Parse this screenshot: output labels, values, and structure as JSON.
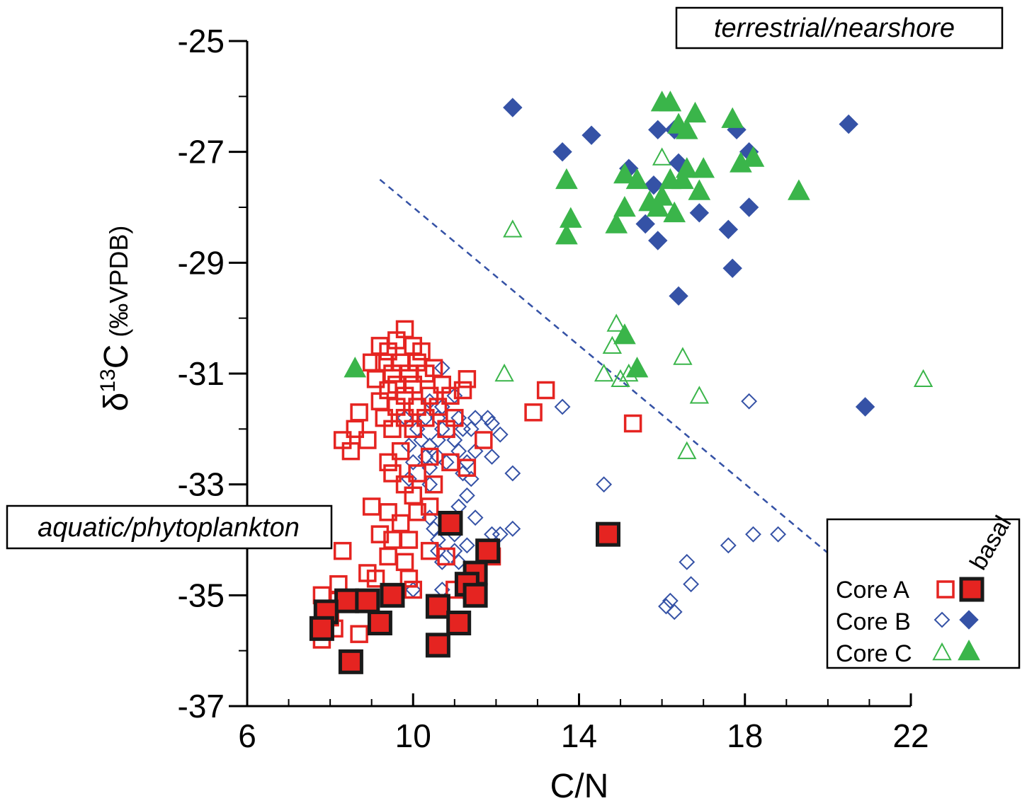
{
  "chart_data": {
    "type": "scatter",
    "xlabel": "C/N",
    "ylabel_delta": "δ",
    "ylabel_sup": "13",
    "ylabel_main": "C",
    "ylabel_units": "(‰VPDB)",
    "xlim": [
      6,
      22
    ],
    "ylim": [
      -37,
      -25
    ],
    "x_ticks": [
      6,
      10,
      14,
      18,
      22
    ],
    "x_tick_labels": [
      "6",
      "10",
      "14",
      "18",
      "22"
    ],
    "y_ticks": [
      -25,
      -27,
      -29,
      -31,
      -33,
      -35,
      -37
    ],
    "y_tick_labels": [
      "-25",
      "-27",
      "-29",
      "-31",
      "-33",
      "-35",
      "-37"
    ],
    "annotations": {
      "terrestrial": "terrestrial/nearshore",
      "aquatic": "aquatic/phytoplankton"
    },
    "divider_line": {
      "from": [
        9.2,
        -27.5
      ],
      "to": [
        20.1,
        -34.3
      ]
    },
    "legend": {
      "header": "basal",
      "entries": [
        "Core A",
        "Core B",
        "Core C"
      ]
    },
    "colors": {
      "core_a": "#e52421",
      "core_b": "#3552a6",
      "core_c": "#3ab54a",
      "basal_edge": "#1a1a1a"
    },
    "series": [
      {
        "name": "Core A",
        "marker": "square-open",
        "points": [
          [
            9.8,
            -30.2
          ],
          [
            9.6,
            -30.4
          ],
          [
            10.0,
            -30.5
          ],
          [
            9.2,
            -30.5
          ],
          [
            9.4,
            -30.6
          ],
          [
            10.2,
            -30.6
          ],
          [
            9.0,
            -30.8
          ],
          [
            9.3,
            -30.8
          ],
          [
            9.7,
            -30.8
          ],
          [
            10.1,
            -30.8
          ],
          [
            10.5,
            -30.9
          ],
          [
            9.5,
            -31.0
          ],
          [
            9.9,
            -31.0
          ],
          [
            10.3,
            -31.0
          ],
          [
            9.1,
            -31.1
          ],
          [
            9.6,
            -31.2
          ],
          [
            10.0,
            -31.2
          ],
          [
            10.7,
            -31.2
          ],
          [
            11.3,
            -31.1
          ],
          [
            9.4,
            -31.3
          ],
          [
            9.8,
            -31.4
          ],
          [
            10.4,
            -31.4
          ],
          [
            10.9,
            -31.4
          ],
          [
            11.2,
            -31.3
          ],
          [
            9.2,
            -31.5
          ],
          [
            9.6,
            -31.6
          ],
          [
            10.1,
            -31.6
          ],
          [
            10.6,
            -31.6
          ],
          [
            13.2,
            -31.3
          ],
          [
            8.7,
            -31.7
          ],
          [
            9.3,
            -31.8
          ],
          [
            9.8,
            -31.8
          ],
          [
            10.3,
            -31.8
          ],
          [
            11.0,
            -31.8
          ],
          [
            12.9,
            -31.7
          ],
          [
            8.6,
            -32.0
          ],
          [
            9.5,
            -32.0
          ],
          [
            10.0,
            -32.0
          ],
          [
            10.8,
            -32.0
          ],
          [
            8.3,
            -32.2
          ],
          [
            8.9,
            -32.2
          ],
          [
            11.7,
            -32.2
          ],
          [
            8.5,
            -32.4
          ],
          [
            9.7,
            -32.4
          ],
          [
            10.4,
            -32.5
          ],
          [
            9.4,
            -32.6
          ],
          [
            10.9,
            -32.6
          ],
          [
            9.5,
            -32.8
          ],
          [
            10.1,
            -32.8
          ],
          [
            11.3,
            -32.7
          ],
          [
            9.8,
            -33.0
          ],
          [
            10.5,
            -33.0
          ],
          [
            10.0,
            -33.2
          ],
          [
            10.4,
            -33.4
          ],
          [
            9.0,
            -33.4
          ],
          [
            9.4,
            -33.5
          ],
          [
            10.1,
            -33.5
          ],
          [
            9.7,
            -33.7
          ],
          [
            9.2,
            -33.9
          ],
          [
            9.5,
            -34.0
          ],
          [
            9.9,
            -34.0
          ],
          [
            9.4,
            -34.3
          ],
          [
            8.3,
            -34.2
          ],
          [
            9.8,
            -34.4
          ],
          [
            10.4,
            -34.2
          ],
          [
            10.8,
            -34.3
          ],
          [
            11.9,
            -34.3
          ],
          [
            8.9,
            -34.6
          ],
          [
            9.1,
            -34.7
          ],
          [
            9.9,
            -34.7
          ],
          [
            8.2,
            -34.8
          ],
          [
            10.0,
            -34.9
          ],
          [
            7.8,
            -35.0
          ],
          [
            8.2,
            -35.1
          ],
          [
            8.0,
            -35.4
          ],
          [
            8.1,
            -35.6
          ],
          [
            8.7,
            -35.7
          ],
          [
            7.8,
            -35.8
          ],
          [
            11.0,
            -34.9
          ],
          [
            15.3,
            -31.9
          ]
        ]
      },
      {
        "name": "Core A basal",
        "marker": "square-filled",
        "points": [
          [
            10.9,
            -33.7
          ],
          [
            14.7,
            -33.9
          ],
          [
            11.8,
            -34.2
          ],
          [
            11.5,
            -34.6
          ],
          [
            11.3,
            -34.8
          ],
          [
            11.5,
            -35.0
          ],
          [
            8.4,
            -35.1
          ],
          [
            8.9,
            -35.1
          ],
          [
            9.5,
            -35.0
          ],
          [
            7.9,
            -35.3
          ],
          [
            10.6,
            -35.2
          ],
          [
            9.2,
            -35.5
          ],
          [
            11.1,
            -35.5
          ],
          [
            7.8,
            -35.6
          ],
          [
            10.6,
            -35.9
          ],
          [
            8.5,
            -36.2
          ]
        ]
      },
      {
        "name": "Core B",
        "marker": "diamond-open",
        "points": [
          [
            10.7,
            -30.9
          ],
          [
            11.0,
            -31.4
          ],
          [
            10.4,
            -31.5
          ],
          [
            10.7,
            -31.6
          ],
          [
            13.6,
            -31.6
          ],
          [
            18.1,
            -31.5
          ],
          [
            9.8,
            -31.8
          ],
          [
            10.3,
            -31.8
          ],
          [
            10.6,
            -31.8
          ],
          [
            11.1,
            -31.8
          ],
          [
            11.5,
            -31.8
          ],
          [
            11.8,
            -31.8
          ],
          [
            11.9,
            -31.9
          ],
          [
            10.1,
            -32.0
          ],
          [
            10.7,
            -32.0
          ],
          [
            11.2,
            -32.0
          ],
          [
            11.4,
            -32.0
          ],
          [
            10.2,
            -32.2
          ],
          [
            10.6,
            -32.2
          ],
          [
            11.0,
            -32.2
          ],
          [
            12.1,
            -32.1
          ],
          [
            9.9,
            -32.3
          ],
          [
            10.4,
            -32.3
          ],
          [
            11.1,
            -32.4
          ],
          [
            11.5,
            -32.4
          ],
          [
            10.3,
            -32.5
          ],
          [
            10.6,
            -32.5
          ],
          [
            11.9,
            -32.5
          ],
          [
            10.0,
            -32.6
          ],
          [
            10.8,
            -32.6
          ],
          [
            11.3,
            -32.6
          ],
          [
            10.4,
            -32.7
          ],
          [
            11.2,
            -32.8
          ],
          [
            12.4,
            -32.8
          ],
          [
            9.9,
            -32.9
          ],
          [
            11.4,
            -32.9
          ],
          [
            10.4,
            -33.0
          ],
          [
            14.6,
            -33.0
          ],
          [
            11.3,
            -33.2
          ],
          [
            11.1,
            -33.4
          ],
          [
            10.4,
            -33.6
          ],
          [
            11.5,
            -33.6
          ],
          [
            10.5,
            -33.8
          ],
          [
            11.0,
            -33.9
          ],
          [
            11.9,
            -33.9
          ],
          [
            12.1,
            -33.9
          ],
          [
            12.4,
            -33.8
          ],
          [
            10.6,
            -34.0
          ],
          [
            18.2,
            -33.9
          ],
          [
            18.8,
            -33.9
          ],
          [
            10.6,
            -34.2
          ],
          [
            11.0,
            -34.2
          ],
          [
            11.3,
            -34.1
          ],
          [
            17.6,
            -34.1
          ],
          [
            10.7,
            -34.4
          ],
          [
            11.1,
            -34.4
          ],
          [
            16.6,
            -34.4
          ],
          [
            10.0,
            -34.9
          ],
          [
            10.7,
            -34.9
          ],
          [
            11.3,
            -35.0
          ],
          [
            16.7,
            -34.8
          ],
          [
            16.2,
            -35.1
          ],
          [
            16.1,
            -35.2
          ],
          [
            16.3,
            -35.3
          ]
        ]
      },
      {
        "name": "Core B basal",
        "marker": "diamond-filled",
        "points": [
          [
            12.4,
            -26.2
          ],
          [
            20.5,
            -26.5
          ],
          [
            17.8,
            -26.6
          ],
          [
            15.9,
            -26.6
          ],
          [
            16.3,
            -26.6
          ],
          [
            14.3,
            -26.7
          ],
          [
            13.6,
            -27.0
          ],
          [
            18.1,
            -27.0
          ],
          [
            16.4,
            -27.2
          ],
          [
            15.2,
            -27.3
          ],
          [
            15.8,
            -27.6
          ],
          [
            16.9,
            -28.1
          ],
          [
            18.1,
            -28.0
          ],
          [
            15.6,
            -28.3
          ],
          [
            17.6,
            -28.4
          ],
          [
            15.9,
            -28.6
          ],
          [
            17.7,
            -29.1
          ],
          [
            16.4,
            -29.6
          ],
          [
            20.9,
            -31.6
          ]
        ]
      },
      {
        "name": "Core C",
        "marker": "triangle-open",
        "points": [
          [
            16.0,
            -27.1
          ],
          [
            12.4,
            -28.4
          ],
          [
            14.9,
            -30.1
          ],
          [
            14.8,
            -30.5
          ],
          [
            16.5,
            -30.7
          ],
          [
            15.2,
            -31.0
          ],
          [
            14.6,
            -31.0
          ],
          [
            12.2,
            -31.0
          ],
          [
            15.0,
            -31.1
          ],
          [
            22.3,
            -31.1
          ],
          [
            16.9,
            -31.4
          ],
          [
            16.6,
            -32.4
          ]
        ]
      },
      {
        "name": "Core C basal",
        "marker": "triangle-filled",
        "points": [
          [
            16.0,
            -26.1
          ],
          [
            16.2,
            -26.1
          ],
          [
            16.8,
            -26.3
          ],
          [
            17.7,
            -26.4
          ],
          [
            16.4,
            -26.5
          ],
          [
            16.6,
            -26.6
          ],
          [
            15.1,
            -27.4
          ],
          [
            16.6,
            -27.3
          ],
          [
            17.0,
            -27.3
          ],
          [
            17.9,
            -27.2
          ],
          [
            18.2,
            -27.1
          ],
          [
            13.7,
            -27.5
          ],
          [
            15.4,
            -27.5
          ],
          [
            16.2,
            -27.5
          ],
          [
            16.5,
            -27.5
          ],
          [
            16.0,
            -27.8
          ],
          [
            16.9,
            -27.7
          ],
          [
            19.3,
            -27.7
          ],
          [
            15.7,
            -27.9
          ],
          [
            15.1,
            -28.0
          ],
          [
            15.9,
            -28.0
          ],
          [
            16.3,
            -28.1
          ],
          [
            13.8,
            -28.2
          ],
          [
            14.9,
            -28.3
          ],
          [
            13.7,
            -28.5
          ],
          [
            8.6,
            -30.9
          ],
          [
            15.1,
            -30.3
          ],
          [
            15.4,
            -30.9
          ]
        ]
      }
    ]
  }
}
